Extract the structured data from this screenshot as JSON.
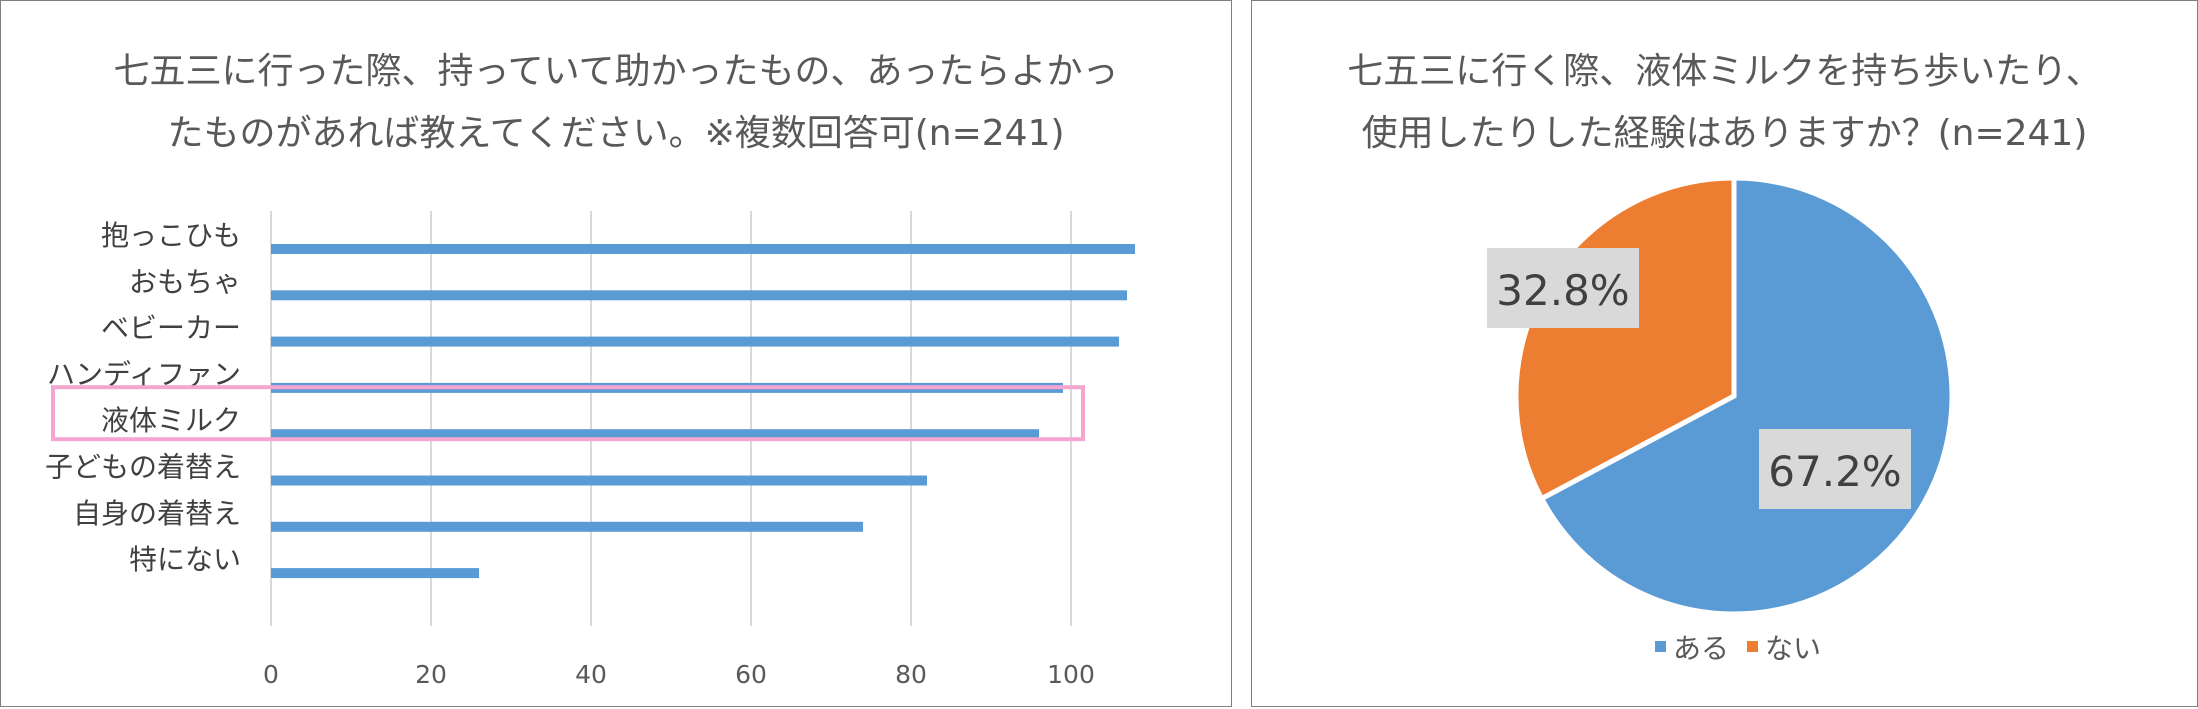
{
  "chart_data": [
    {
      "type": "bar",
      "orientation": "horizontal",
      "title": [
        "七五三に行った際、持っていて助かったもの、あったらよかっ",
        "たものがあれば教えてください。※複数回答可(n=241)"
      ],
      "categories": [
        "抱っこひも",
        "おもちゃ",
        "ベビーカー",
        "ハンディファン",
        "液体ミルク",
        "子どもの着替え",
        "自身の着替え",
        "特にない"
      ],
      "values": [
        108,
        107,
        106,
        99,
        96,
        82,
        74,
        26
      ],
      "xlim": [
        0,
        110
      ],
      "xticks": [
        0,
        20,
        40,
        60,
        80,
        100
      ],
      "grid": true,
      "highlight_category": "液体ミルク",
      "colors": {
        "bar": "#5b9bd5",
        "grid": "#d9d9d9",
        "highlight": "#f4a6d0"
      }
    },
    {
      "type": "pie",
      "title": [
        "七五三に行く際、液体ミルクを持ち歩いたり、",
        "使用したりした経験はありますか？(n=241)"
      ],
      "slices": [
        {
          "label": "ある",
          "value": 67.2,
          "display": "67.2%",
          "color": "#5b9bd5"
        },
        {
          "label": "ない",
          "value": 32.8,
          "display": "32.8%",
          "color": "#ed7d31"
        }
      ],
      "legend_position": "bottom"
    }
  ]
}
